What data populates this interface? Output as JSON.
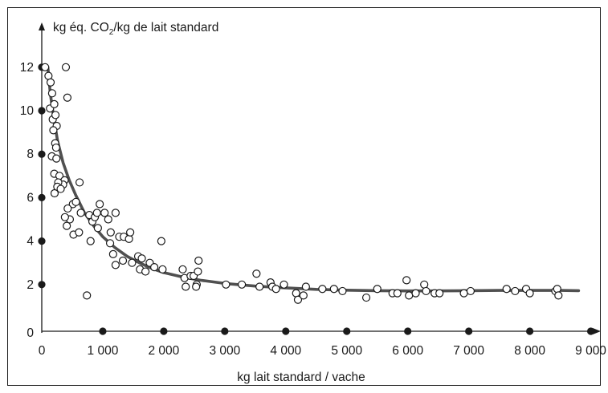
{
  "chart_data": {
    "type": "scatter",
    "ylabel_prefix": "kg éq. CO",
    "ylabel_sub": "2",
    "ylabel_suffix": "/kg de lait standard",
    "xlabel": "kg lait standard / vache",
    "xlim": [
      0,
      9500
    ],
    "ylim": [
      0,
      12.8
    ],
    "x_ticks": [
      0,
      1000,
      2000,
      3000,
      4000,
      5000,
      6000,
      7000,
      8000,
      9000
    ],
    "x_tick_labels": [
      "0",
      "1 000",
      "2 000",
      "3 000",
      "4 000",
      "5 000",
      "6 000",
      "7 000",
      "8 000",
      "9 000"
    ],
    "y_ticks": [
      0,
      2,
      4,
      6,
      8,
      10,
      12
    ],
    "y_tick_labels": [
      "0",
      "2",
      "4",
      "6",
      "8",
      "10",
      "12"
    ],
    "grid": false,
    "legend": "none",
    "colors": {
      "points": "#1a1a1a",
      "trend": "#505050",
      "axes": "#1a1a1a"
    },
    "points": [
      [
        55,
        12.0
      ],
      [
        110,
        11.6
      ],
      [
        145,
        11.3
      ],
      [
        170,
        10.8
      ],
      [
        135,
        10.1
      ],
      [
        205,
        10.3
      ],
      [
        180,
        9.6
      ],
      [
        225,
        9.8
      ],
      [
        245,
        9.3
      ],
      [
        190,
        9.1
      ],
      [
        220,
        8.5
      ],
      [
        235,
        8.3
      ],
      [
        165,
        7.9
      ],
      [
        240,
        7.8
      ],
      [
        205,
        7.1
      ],
      [
        290,
        7.0
      ],
      [
        375,
        6.8
      ],
      [
        350,
        6.6
      ],
      [
        270,
        6.7
      ],
      [
        210,
        6.2
      ],
      [
        255,
        6.5
      ],
      [
        395,
        12.0
      ],
      [
        420,
        10.6
      ],
      [
        510,
        5.7
      ],
      [
        620,
        6.7
      ],
      [
        310,
        6.4
      ],
      [
        425,
        5.5
      ],
      [
        460,
        5.0
      ],
      [
        410,
        4.7
      ],
      [
        380,
        5.1
      ],
      [
        560,
        5.8
      ],
      [
        640,
        5.3
      ],
      [
        520,
        4.3
      ],
      [
        610,
        4.4
      ],
      [
        780,
        5.2
      ],
      [
        800,
        4.0
      ],
      [
        830,
        4.9
      ],
      [
        870,
        5.1
      ],
      [
        905,
        5.3
      ],
      [
        950,
        5.7
      ],
      [
        920,
        4.6
      ],
      [
        1030,
        5.3
      ],
      [
        1090,
        5.0
      ],
      [
        1130,
        4.4
      ],
      [
        1210,
        5.3
      ],
      [
        1270,
        4.2
      ],
      [
        1345,
        4.2
      ],
      [
        1430,
        4.1
      ],
      [
        1450,
        4.4
      ],
      [
        1120,
        3.9
      ],
      [
        1170,
        3.4
      ],
      [
        1210,
        2.9
      ],
      [
        1330,
        3.1
      ],
      [
        1480,
        3.0
      ],
      [
        1580,
        3.3
      ],
      [
        1640,
        3.2
      ],
      [
        1610,
        2.7
      ],
      [
        1700,
        2.6
      ],
      [
        1770,
        3.0
      ],
      [
        1845,
        2.8
      ],
      [
        1980,
        2.7
      ],
      [
        1960,
        4.0
      ],
      [
        2310,
        2.7
      ],
      [
        2340,
        2.3
      ],
      [
        2360,
        1.9
      ],
      [
        2440,
        2.4
      ],
      [
        2490,
        2.4
      ],
      [
        2540,
        2.0
      ],
      [
        2560,
        2.6
      ],
      [
        2570,
        3.1
      ],
      [
        2530,
        1.9
      ],
      [
        740,
        1.5
      ],
      [
        3020,
        2.0
      ],
      [
        3280,
        2.0
      ],
      [
        3520,
        2.5
      ],
      [
        3570,
        1.9
      ],
      [
        3750,
        2.1
      ],
      [
        3780,
        1.9
      ],
      [
        3840,
        1.8
      ],
      [
        3970,
        2.0
      ],
      [
        4170,
        1.6
      ],
      [
        4200,
        1.3
      ],
      [
        4290,
        1.5
      ],
      [
        4330,
        1.9
      ],
      [
        4600,
        1.8
      ],
      [
        4790,
        1.8
      ],
      [
        4930,
        1.7
      ],
      [
        5320,
        1.4
      ],
      [
        5500,
        1.8
      ],
      [
        5750,
        1.6
      ],
      [
        5830,
        1.6
      ],
      [
        5980,
        2.2
      ],
      [
        6020,
        1.5
      ],
      [
        6130,
        1.6
      ],
      [
        6270,
        2.0
      ],
      [
        6300,
        1.7
      ],
      [
        6440,
        1.6
      ],
      [
        6520,
        1.6
      ],
      [
        6920,
        1.6
      ],
      [
        7030,
        1.7
      ],
      [
        7620,
        1.8
      ],
      [
        7760,
        1.7
      ],
      [
        7940,
        1.8
      ],
      [
        8000,
        1.6
      ],
      [
        8420,
        1.7
      ],
      [
        8450,
        1.8
      ],
      [
        8470,
        1.5
      ]
    ],
    "trend": [
      [
        100,
        12.0
      ],
      [
        140,
        10.8
      ],
      [
        190,
        9.8
      ],
      [
        260,
        8.6
      ],
      [
        350,
        7.6
      ],
      [
        450,
        6.8
      ],
      [
        560,
        6.1
      ],
      [
        700,
        5.3
      ],
      [
        850,
        4.7
      ],
      [
        1000,
        4.2
      ],
      [
        1200,
        3.7
      ],
      [
        1400,
        3.3
      ],
      [
        1600,
        3.0
      ],
      [
        1800,
        2.75
      ],
      [
        2000,
        2.55
      ],
      [
        2300,
        2.35
      ],
      [
        2600,
        2.2
      ],
      [
        3000,
        2.05
      ],
      [
        3500,
        1.93
      ],
      [
        4000,
        1.85
      ],
      [
        4500,
        1.78
      ],
      [
        5000,
        1.74
      ],
      [
        5500,
        1.72
      ],
      [
        6000,
        1.71
      ],
      [
        6500,
        1.71
      ],
      [
        7000,
        1.72
      ],
      [
        7500,
        1.73
      ],
      [
        8000,
        1.73
      ],
      [
        8500,
        1.73
      ],
      [
        8800,
        1.72
      ]
    ]
  }
}
